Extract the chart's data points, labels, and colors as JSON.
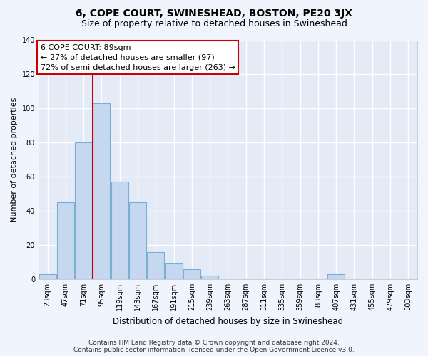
{
  "title1": "6, COPE COURT, SWINESHEAD, BOSTON, PE20 3JX",
  "title2": "Size of property relative to detached houses in Swineshead",
  "xlabel": "Distribution of detached houses by size in Swineshead",
  "ylabel": "Number of detached properties",
  "categories": [
    "23sqm",
    "47sqm",
    "71sqm",
    "95sqm",
    "119sqm",
    "143sqm",
    "167sqm",
    "191sqm",
    "215sqm",
    "239sqm",
    "263sqm",
    "287sqm",
    "311sqm",
    "335sqm",
    "359sqm",
    "383sqm",
    "407sqm",
    "431sqm",
    "455sqm",
    "479sqm",
    "503sqm"
  ],
  "values": [
    3,
    45,
    80,
    103,
    57,
    45,
    16,
    9,
    6,
    2,
    0,
    0,
    0,
    0,
    0,
    0,
    3,
    0,
    0,
    0,
    0
  ],
  "bar_color": "#c5d8f0",
  "bar_edge_color": "#7aafd4",
  "vline_color": "#cc0000",
  "annotation_line1": "6 COPE COURT: 89sqm",
  "annotation_line2": "← 27% of detached houses are smaller (97)",
  "annotation_line3": "72% of semi-detached houses are larger (263) →",
  "annotation_box_color": "#ffffff",
  "annotation_box_edge": "#cc0000",
  "ylim": [
    0,
    140
  ],
  "yticks": [
    0,
    20,
    40,
    60,
    80,
    100,
    120,
    140
  ],
  "footer1": "Contains HM Land Registry data © Crown copyright and database right 2024.",
  "footer2": "Contains public sector information licensed under the Open Government Licence v3.0.",
  "bg_color": "#f0f4fc",
  "plot_bg_color": "#e4ebf7",
  "grid_color": "#ffffff",
  "title1_fontsize": 10,
  "title2_fontsize": 9,
  "ylabel_fontsize": 8,
  "xlabel_fontsize": 8.5,
  "tick_fontsize": 7,
  "annotation_fontsize": 8,
  "footer_fontsize": 6.5
}
